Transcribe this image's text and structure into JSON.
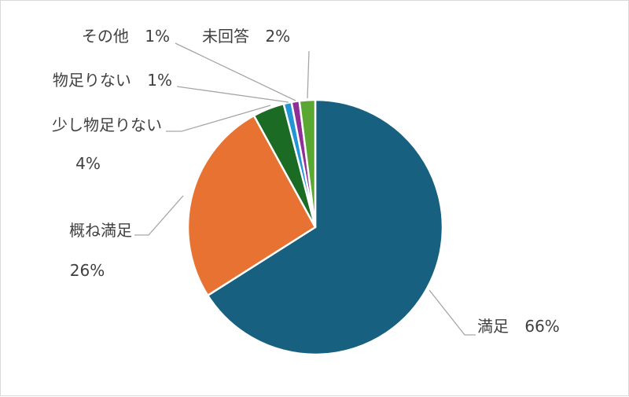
{
  "chart_data": {
    "type": "pie",
    "title": "",
    "start_angle_deg": 0,
    "direction": "clockwise",
    "slices": [
      {
        "category": "満足",
        "value": 66,
        "label": "66%",
        "color": "#17607f"
      },
      {
        "category": "概ね満足",
        "value": 26,
        "label": "26%",
        "color": "#e87231"
      },
      {
        "category": "少し物足りない",
        "value": 4,
        "label": "4%",
        "color": "#1b6b24"
      },
      {
        "category": "物足りない",
        "value": 1,
        "label": "1%",
        "color": "#2394d6"
      },
      {
        "category": "その他",
        "value": 1,
        "label": "1%",
        "color": "#8f2f96"
      },
      {
        "category": "未回答",
        "value": 2,
        "label": "2%",
        "color": "#5aa832"
      }
    ],
    "legend": "none"
  }
}
